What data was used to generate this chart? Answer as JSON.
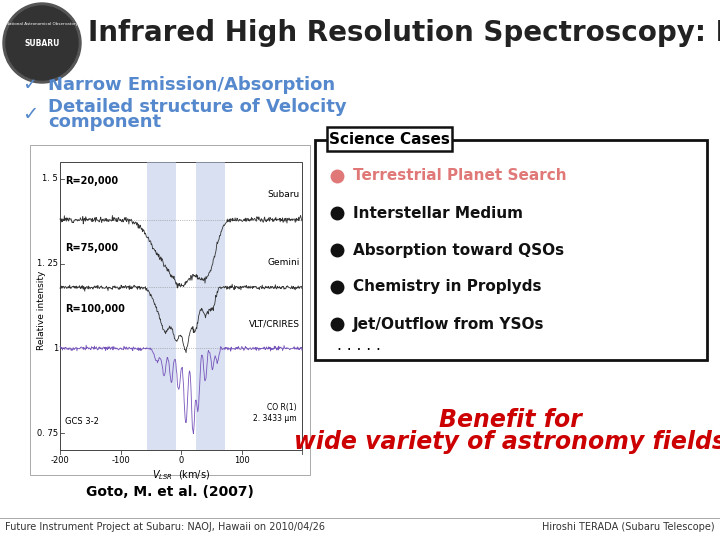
{
  "title": "Infrared High Resolution Spectroscopy: Merits",
  "title_fontsize": 20,
  "title_color": "#222222",
  "background_color": "#ffffff",
  "bullet_color": "#5588cc",
  "bullet_items_line1": "Narrow Emission/Absorption",
  "bullet_items_line2a": "Detailed structure of Velocity",
  "bullet_items_line2b": "component",
  "box_title": "Science Cases",
  "science_items": [
    {
      "text": "Terrestrial Planet Search",
      "color": "#e07878",
      "bullet_color": "#e07878"
    },
    {
      "text": "Interstellar Medium",
      "color": "#111111",
      "bullet_color": "#111111"
    },
    {
      "text": "Absorption toward QSOs",
      "color": "#111111",
      "bullet_color": "#111111"
    },
    {
      "text": "Chemistry in Proplyds",
      "color": "#111111",
      "bullet_color": "#111111"
    },
    {
      "text": "Jet/Outflow from YSOs",
      "color": "#111111",
      "bullet_color": "#111111"
    }
  ],
  "science_dots": ". . . . .",
  "benefit_line1": "Benefit for",
  "benefit_line2": "wide variety of astronomy fields",
  "benefit_color": "#cc0000",
  "footer_left": "Future Instrument Project at Subaru: NAOJ, Hawaii on 2010/04/26",
  "footer_right": "Hiroshi TERADA (Subaru Telescope)",
  "graph_caption": "Goto, M. et al. (2007)",
  "spec_labels": [
    "R=20,000",
    "R=75,000",
    "R=100,000"
  ],
  "spec_instruments": [
    "Subaru",
    "Gemini",
    "VLT/CRIRES"
  ],
  "ytick_labels": [
    "1. 5",
    "1. 25",
    "1",
    "0. 75"
  ],
  "xtick_labels": [
    "-200",
    "-100",
    "0",
    "100"
  ],
  "co_label": "CO R(1)\n2. 3433 μm",
  "gcs_label": "GCS 3-2",
  "vlsr_label": "V_LSR  (km/s)"
}
